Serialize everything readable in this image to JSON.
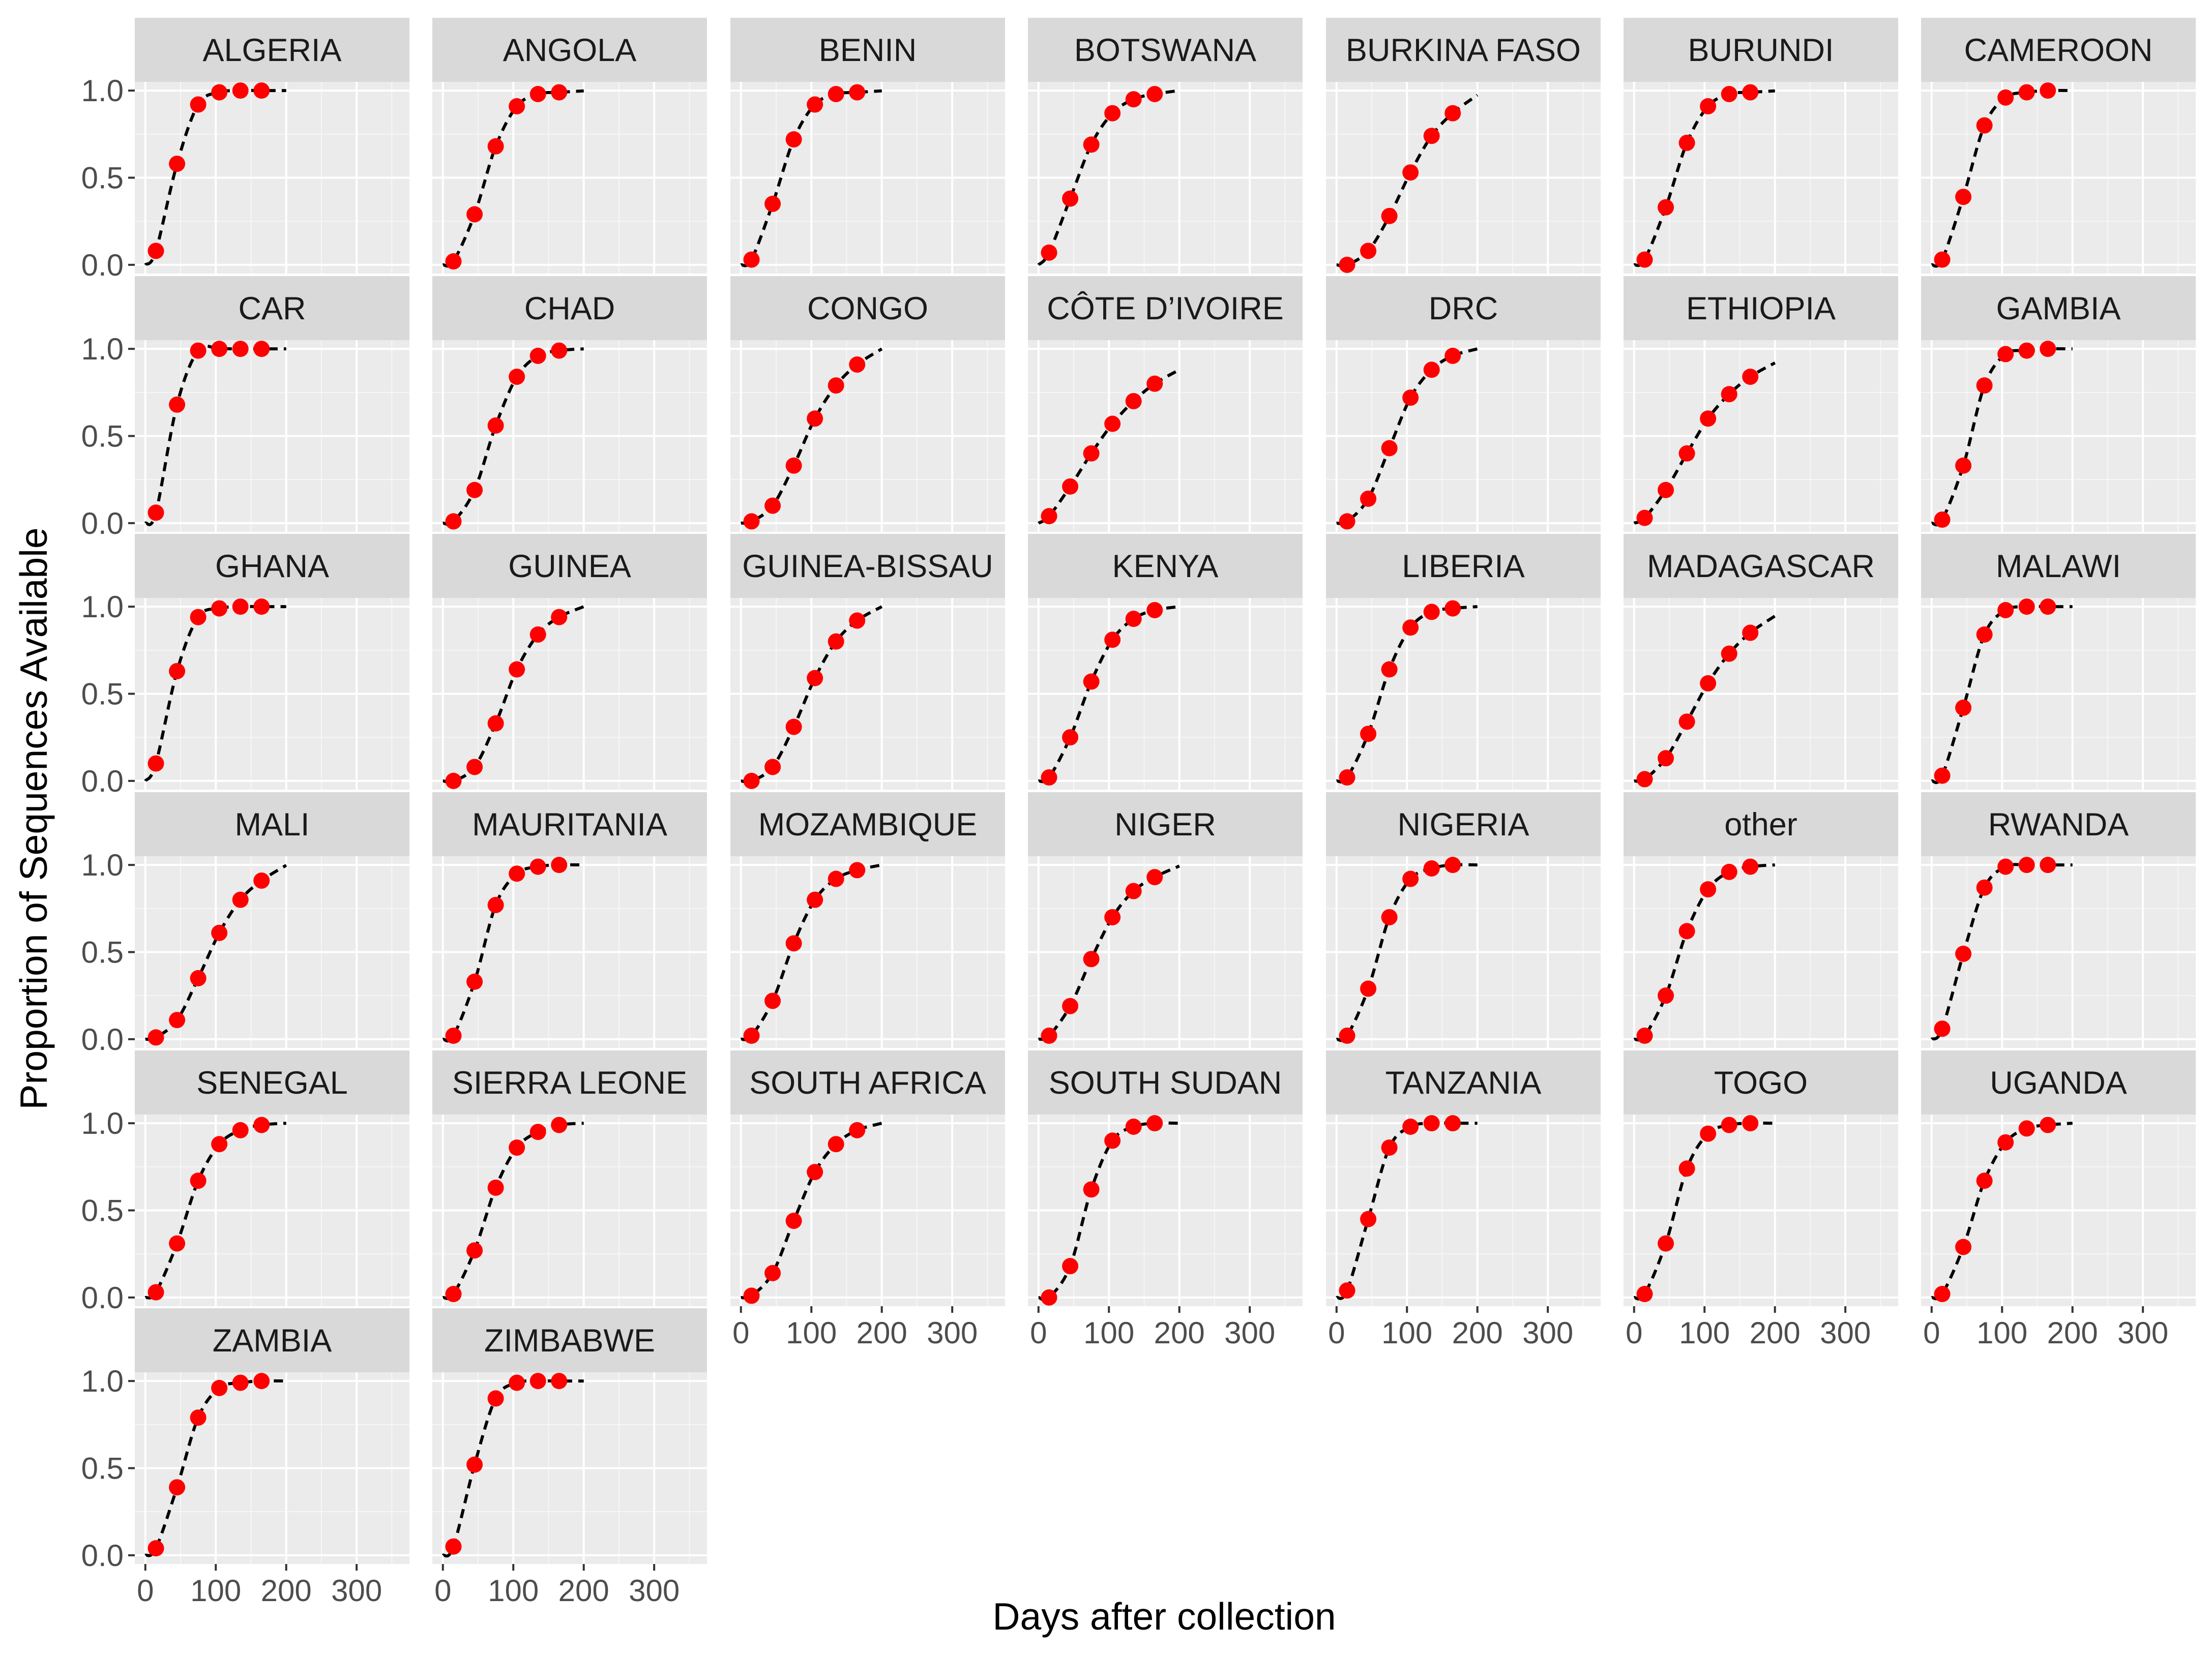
{
  "chart_data": {
    "type": "scatter",
    "xlabel": "Days after collection",
    "ylabel": "Proportion of Sequences Available",
    "xlim": [
      -15,
      375
    ],
    "ylim": [
      -0.05,
      1.05
    ],
    "xticks": [
      "0",
      "100",
      "200",
      "300"
    ],
    "yticks": [
      "0.0",
      "0.5",
      "1.0"
    ],
    "grid": true,
    "point_x": [
      15,
      45,
      75,
      105,
      135,
      165
    ],
    "colors": {
      "panel_bg": "#ebebeb",
      "strip_bg": "#d9d9d9",
      "grid": "#ffffff",
      "points": "#ff0000",
      "curve": "#000000",
      "tick_marks": "#333333"
    },
    "facets": [
      {
        "label": "ALGERIA",
        "y": [
          0.08,
          0.58,
          0.92,
          0.99,
          1.0,
          1.0
        ]
      },
      {
        "label": "ANGOLA",
        "y": [
          0.02,
          0.29,
          0.68,
          0.91,
          0.98,
          0.99
        ]
      },
      {
        "label": "BENIN",
        "y": [
          0.03,
          0.35,
          0.72,
          0.92,
          0.98,
          0.99
        ]
      },
      {
        "label": "BOTSWANA",
        "y": [
          0.07,
          0.38,
          0.69,
          0.87,
          0.95,
          0.98
        ]
      },
      {
        "label": "BURKINA FASO",
        "y": [
          0.0,
          0.08,
          0.28,
          0.53,
          0.74,
          0.87
        ]
      },
      {
        "label": "BURUNDI",
        "y": [
          0.03,
          0.33,
          0.7,
          0.91,
          0.98,
          0.99
        ]
      },
      {
        "label": "CAMEROON",
        "y": [
          0.03,
          0.39,
          0.8,
          0.96,
          0.99,
          1.0
        ]
      },
      {
        "label": "CAR",
        "y": [
          0.06,
          0.68,
          0.99,
          1.0,
          1.0,
          1.0
        ]
      },
      {
        "label": "CHAD",
        "y": [
          0.01,
          0.19,
          0.56,
          0.84,
          0.96,
          0.99
        ]
      },
      {
        "label": "CONGO",
        "y": [
          0.01,
          0.1,
          0.33,
          0.6,
          0.79,
          0.91
        ]
      },
      {
        "label": "CÔTE D’IVOIRE",
        "y": [
          0.04,
          0.21,
          0.4,
          0.57,
          0.7,
          0.8
        ]
      },
      {
        "label": "DRC",
        "y": [
          0.01,
          0.14,
          0.43,
          0.72,
          0.88,
          0.96
        ]
      },
      {
        "label": "ETHIOPIA",
        "y": [
          0.03,
          0.19,
          0.4,
          0.6,
          0.74,
          0.84
        ]
      },
      {
        "label": "GAMBIA",
        "y": [
          0.02,
          0.33,
          0.79,
          0.97,
          0.99,
          1.0
        ]
      },
      {
        "label": "GHANA",
        "y": [
          0.1,
          0.63,
          0.94,
          0.99,
          1.0,
          1.0
        ]
      },
      {
        "label": "GUINEA",
        "y": [
          0.0,
          0.08,
          0.33,
          0.64,
          0.84,
          0.94
        ]
      },
      {
        "label": "GUINEA-BISSAU",
        "y": [
          0.0,
          0.08,
          0.31,
          0.59,
          0.8,
          0.92
        ]
      },
      {
        "label": "KENYA",
        "y": [
          0.02,
          0.25,
          0.57,
          0.81,
          0.93,
          0.98
        ]
      },
      {
        "label": "LIBERIA",
        "y": [
          0.02,
          0.27,
          0.64,
          0.88,
          0.97,
          0.99
        ]
      },
      {
        "label": "MADAGASCAR",
        "y": [
          0.01,
          0.13,
          0.34,
          0.56,
          0.73,
          0.85
        ]
      },
      {
        "label": "MALAWI",
        "y": [
          0.03,
          0.42,
          0.84,
          0.98,
          1.0,
          1.0
        ]
      },
      {
        "label": "MALI",
        "y": [
          0.01,
          0.11,
          0.35,
          0.61,
          0.8,
          0.91
        ]
      },
      {
        "label": "MAURITANIA",
        "y": [
          0.02,
          0.33,
          0.77,
          0.95,
          0.99,
          1.0
        ]
      },
      {
        "label": "MOZAMBIQUE",
        "y": [
          0.02,
          0.22,
          0.55,
          0.8,
          0.92,
          0.97
        ]
      },
      {
        "label": "NIGER",
        "y": [
          0.02,
          0.19,
          0.46,
          0.7,
          0.85,
          0.93
        ]
      },
      {
        "label": "NIGERIA",
        "y": [
          0.02,
          0.29,
          0.7,
          0.92,
          0.98,
          1.0
        ]
      },
      {
        "label": "other",
        "y": [
          0.02,
          0.25,
          0.62,
          0.86,
          0.96,
          0.99
        ]
      },
      {
        "label": "RWANDA",
        "y": [
          0.06,
          0.49,
          0.87,
          0.99,
          1.0,
          1.0
        ]
      },
      {
        "label": "SENEGAL",
        "y": [
          0.03,
          0.31,
          0.67,
          0.88,
          0.96,
          0.99
        ]
      },
      {
        "label": "SIERRA LEONE",
        "y": [
          0.02,
          0.27,
          0.63,
          0.86,
          0.95,
          0.99
        ]
      },
      {
        "label": "SOUTH AFRICA",
        "y": [
          0.01,
          0.14,
          0.44,
          0.72,
          0.88,
          0.96
        ]
      },
      {
        "label": "SOUTH SUDAN",
        "y": [
          0.0,
          0.18,
          0.62,
          0.9,
          0.98,
          1.0
        ]
      },
      {
        "label": "TANZANIA",
        "y": [
          0.04,
          0.45,
          0.86,
          0.98,
          1.0,
          1.0
        ]
      },
      {
        "label": "TOGO",
        "y": [
          0.02,
          0.31,
          0.74,
          0.94,
          0.99,
          1.0
        ]
      },
      {
        "label": "UGANDA",
        "y": [
          0.02,
          0.29,
          0.67,
          0.89,
          0.97,
          0.99
        ]
      },
      {
        "label": "ZAMBIA",
        "y": [
          0.04,
          0.39,
          0.79,
          0.96,
          0.99,
          1.0
        ]
      },
      {
        "label": "ZIMBABWE",
        "y": [
          0.05,
          0.52,
          0.9,
          0.99,
          1.0,
          1.0
        ]
      }
    ]
  }
}
